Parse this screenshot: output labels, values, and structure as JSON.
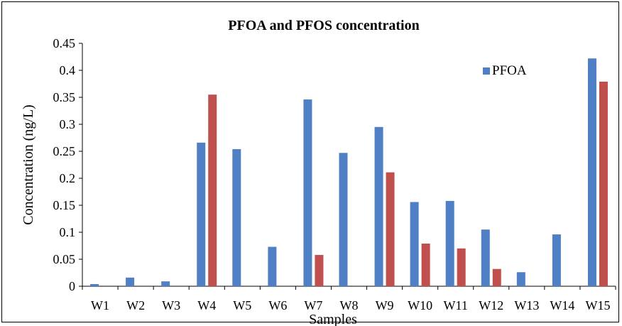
{
  "chart_data": {
    "type": "bar",
    "title": "PFOA and PFOS concentration",
    "xlabel": "Samples",
    "ylabel": "Concentration (ng/L)",
    "ylim": [
      0,
      0.45
    ],
    "yticks": [
      "0",
      "0.05",
      "0.1",
      "0.15",
      "0.2",
      "0.25",
      "0.3",
      "0.35",
      "0.4",
      "0.45"
    ],
    "categories": [
      "W1",
      "W2",
      "W3",
      "W4",
      "W5",
      "W6",
      "W7",
      "W8",
      "W9",
      "W10",
      "W11",
      "W12",
      "W13",
      "W14",
      "W15"
    ],
    "series": [
      {
        "name": "PFOA",
        "color": "#4F7FC4",
        "values": [
          0.004,
          0.016,
          0.009,
          0.266,
          0.254,
          0.073,
          0.346,
          0.247,
          0.295,
          0.156,
          0.158,
          0.105,
          0.026,
          0.096,
          0.422
        ]
      },
      {
        "color": "#C0504D",
        "values": [
          0,
          0,
          0,
          0.355,
          0,
          0,
          0.058,
          0,
          0.211,
          0.079,
          0.07,
          0.032,
          0,
          0,
          0.379
        ]
      }
    ],
    "grid": false,
    "legend_position": "top-right"
  }
}
